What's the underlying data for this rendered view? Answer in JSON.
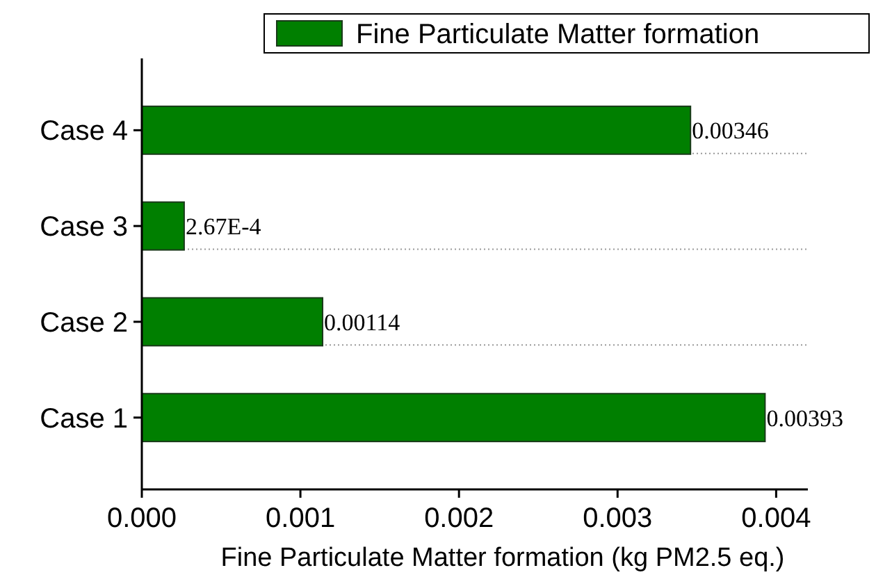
{
  "chart_data": {
    "type": "bar",
    "orientation": "horizontal",
    "xlabel": "Fine Particulate Matter formation (kg PM2.5 eq.)",
    "categories": [
      "Case 4",
      "Case 3",
      "Case 2",
      "Case 1"
    ],
    "series": [
      {
        "name": "Fine Particulate Matter formation",
        "color": "#007f00",
        "values": [
          0.00346,
          0.000267,
          0.00114,
          0.00393
        ],
        "value_labels": [
          "0.00346",
          "2.67E-4",
          "0.00114",
          "0.00393"
        ]
      }
    ],
    "xlim": [
      0,
      0.0042
    ],
    "xticks": [
      {
        "value": 0,
        "label": "0.000"
      },
      {
        "value": 0.001,
        "label": "0.001"
      },
      {
        "value": 0.002,
        "label": "0.002"
      },
      {
        "value": 0.003,
        "label": "0.003"
      },
      {
        "value": 0.004,
        "label": "0.004"
      }
    ],
    "grid": "y",
    "legend": "top right"
  }
}
